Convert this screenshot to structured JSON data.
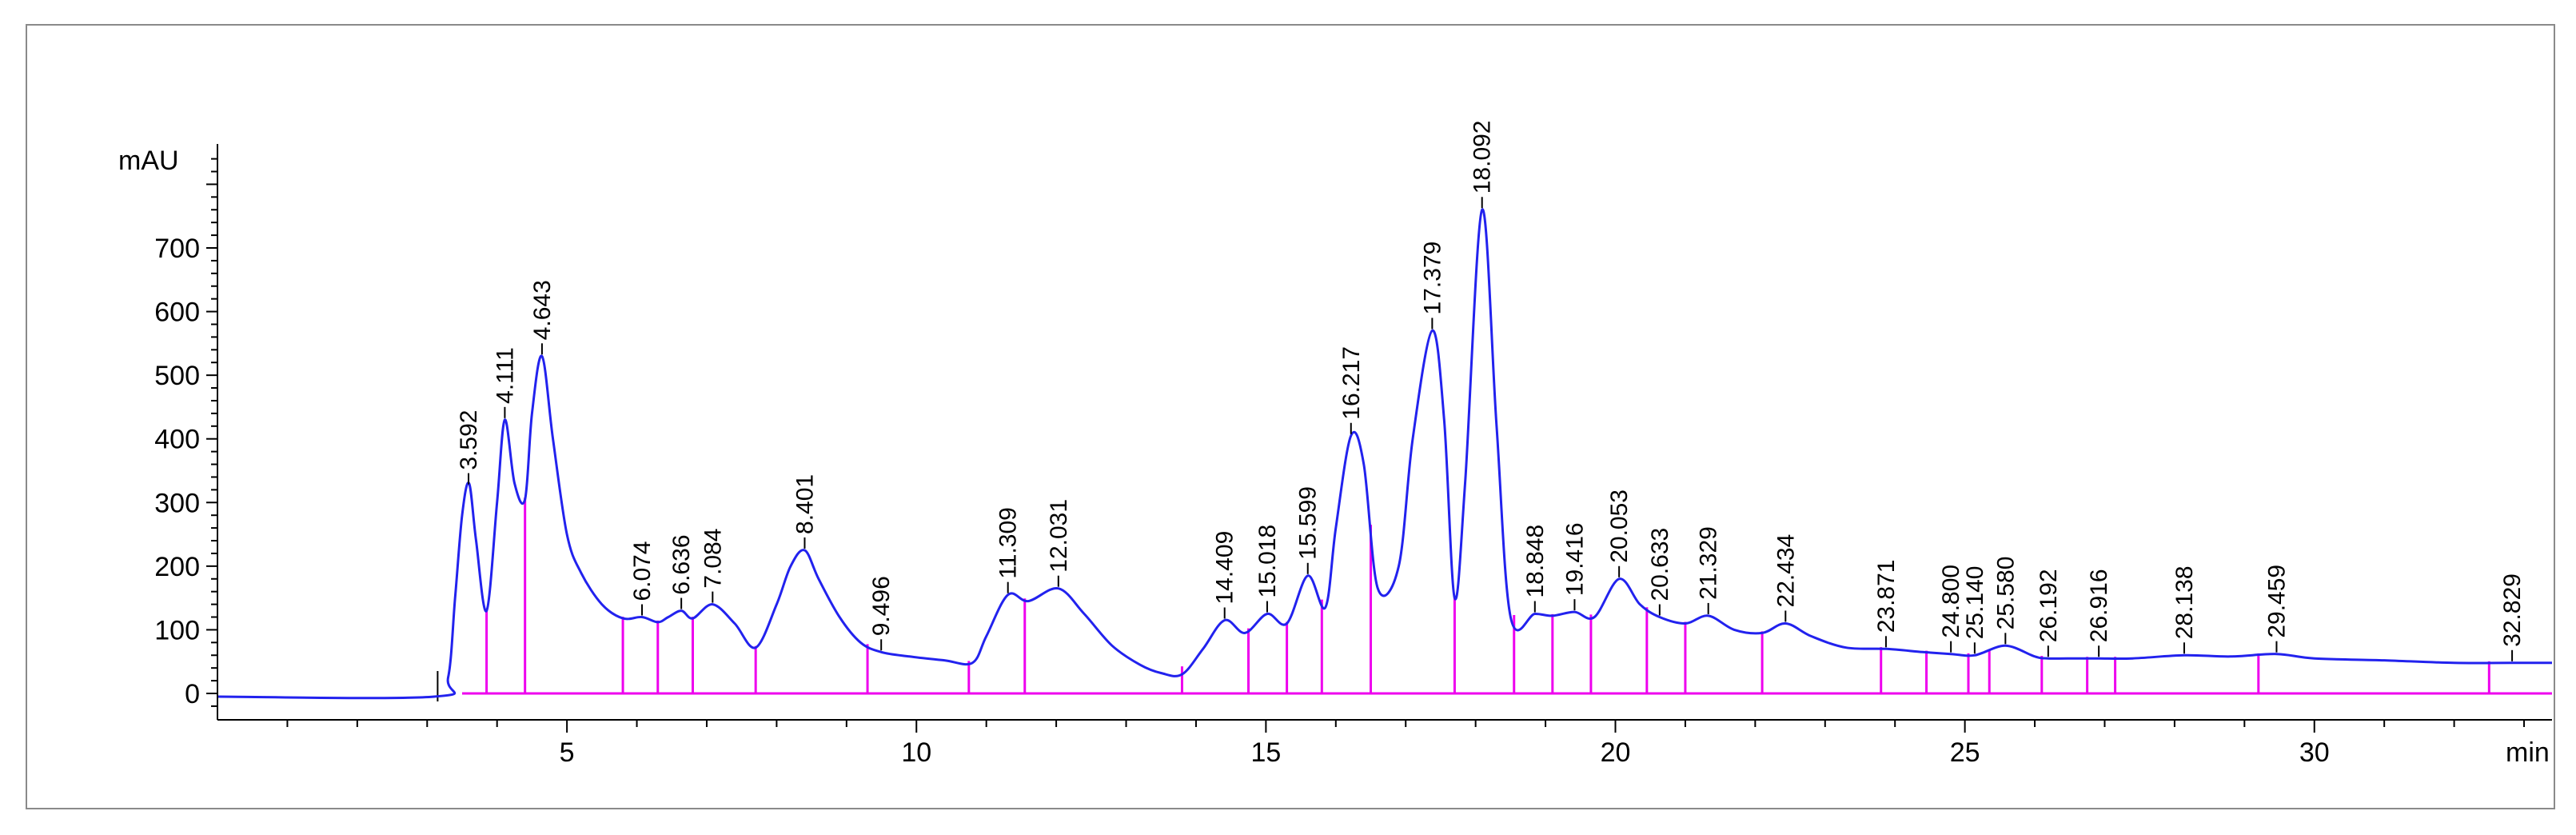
{
  "chart_data": {
    "type": "line",
    "title": "",
    "ylabel": "mAU",
    "xlabel": "min",
    "xlim": [
      0,
      33.4
    ],
    "ylim": [
      -30,
      880
    ],
    "x_ticks": [
      5,
      10,
      15,
      20,
      25,
      30
    ],
    "y_ticks": [
      0,
      100,
      200,
      300,
      400,
      500,
      600,
      700
    ],
    "grid": false,
    "colors": {
      "trace": "#2222ee",
      "markers": "#ee00ee",
      "axis": "#000000",
      "frame": "#8a8a8a"
    },
    "series": [
      {
        "x": [
          0,
          3.1,
          3.3,
          3.4,
          3.5,
          3.6,
          3.7,
          3.85,
          4.0,
          4.111,
          4.25,
          4.4,
          4.5,
          4.643,
          4.8,
          5.0,
          5.2,
          5.5,
          5.8,
          6.074,
          6.3,
          6.45,
          6.636,
          6.8,
          7.084,
          7.4,
          7.7,
          8.0,
          8.2,
          8.401,
          8.6,
          8.9,
          9.2,
          9.496,
          9.9,
          10.4,
          10.8,
          11.0,
          11.309,
          11.6,
          12.031,
          12.4,
          12.8,
          13.2,
          13.5,
          13.8,
          14.1,
          14.409,
          14.7,
          15.018,
          15.3,
          15.599,
          15.85,
          16.0,
          16.217,
          16.4,
          16.6,
          16.9,
          17.1,
          17.379,
          17.55,
          17.7,
          17.85,
          18.092,
          18.3,
          18.5,
          18.848,
          19.1,
          19.416,
          19.7,
          20.053,
          20.35,
          20.633,
          21.0,
          21.329,
          21.7,
          22.1,
          22.434,
          22.8,
          23.3,
          23.871,
          24.4,
          24.8,
          25.14,
          25.58,
          26.0,
          26.192,
          26.6,
          26.916,
          27.4,
          28.138,
          28.8,
          29.459,
          30.0,
          31.0,
          32.0,
          32.829,
          33.4
        ],
        "y": [
          -5,
          -5,
          25,
          150,
          280,
          330,
          240,
          130,
          300,
          430,
          330,
          305,
          440,
          530,
          400,
          250,
          190,
          140,
          118,
          120,
          112,
          120,
          130,
          118,
          140,
          110,
          72,
          140,
          200,
          225,
          180,
          120,
          80,
          65,
          58,
          52,
          48,
          90,
          155,
          145,
          165,
          125,
          75,
          45,
          32,
          30,
          70,
          115,
          95,
          125,
          110,
          185,
          135,
          260,
          405,
          360,
          165,
          200,
          400,
          570,
          430,
          150,
          330,
          760,
          420,
          120,
          125,
          122,
          128,
          120,
          180,
          140,
          120,
          110,
          122,
          100,
          95,
          110,
          90,
          72,
          70,
          65,
          62,
          60,
          75,
          58,
          55,
          55,
          55,
          55,
          60,
          58,
          62,
          55,
          52,
          48,
          48,
          48
        ]
      }
    ],
    "peaks": [
      3.592,
      4.111,
      4.643,
      6.074,
      6.636,
      7.084,
      8.401,
      9.496,
      11.309,
      12.031,
      14.409,
      15.018,
      15.599,
      16.217,
      17.379,
      18.092,
      18.848,
      19.416,
      20.053,
      20.633,
      21.329,
      22.434,
      23.871,
      24.8,
      25.14,
      25.58,
      26.192,
      26.916,
      28.138,
      29.459,
      32.829
    ],
    "peak_labels": [
      "3.592",
      "4.111",
      "4.643",
      "6.074",
      "6.636",
      "7.084",
      "8.401",
      "9.496",
      "11.309",
      "12.031",
      "14.409",
      "15.018",
      "15.599",
      "16.217",
      "17.379",
      "18.092",
      "18.848",
      "19.416",
      "20.053",
      "20.633",
      "21.329",
      "22.434",
      "23.871",
      "24.800",
      "25.140",
      "25.580",
      "26.192",
      "26.916",
      "28.138",
      "29.459",
      "32.829"
    ],
    "integration_marks": [
      3.85,
      4.4,
      5.8,
      6.3,
      6.8,
      7.7,
      9.3,
      10.75,
      11.55,
      13.8,
      14.75,
      15.3,
      15.8,
      16.5,
      17.7,
      18.55,
      19.1,
      19.65,
      20.45,
      21.0,
      22.1,
      23.8,
      24.45,
      25.05,
      25.35,
      26.1,
      26.75,
      27.15,
      29.2,
      32.5
    ]
  }
}
